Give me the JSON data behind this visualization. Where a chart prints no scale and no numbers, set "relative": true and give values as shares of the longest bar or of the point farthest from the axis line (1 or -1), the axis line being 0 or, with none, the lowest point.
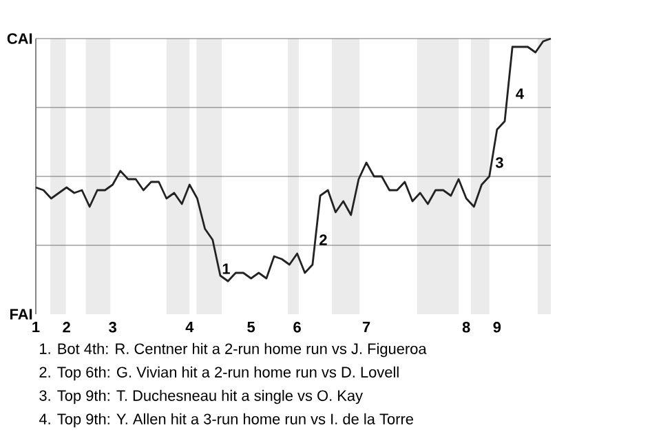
{
  "chart_data": {
    "type": "line",
    "relative": true,
    "categories": [
      "1",
      null,
      null,
      null,
      "2",
      null,
      null,
      null,
      null,
      null,
      "3",
      null,
      null,
      null,
      null,
      null,
      null,
      null,
      null,
      null,
      "4",
      null,
      null,
      null,
      null,
      null,
      null,
      null,
      "5",
      null,
      null,
      null,
      null,
      null,
      "6",
      null,
      null,
      null,
      null,
      null,
      null,
      null,
      null,
      "7",
      null,
      null,
      null,
      null,
      null,
      null,
      null,
      null,
      null,
      null,
      null,
      null,
      "8",
      null,
      null,
      null,
      "9",
      null,
      null,
      null,
      null,
      null,
      null,
      null
    ],
    "values": [
      0.46,
      0.45,
      0.42,
      0.44,
      0.46,
      0.44,
      0.45,
      0.39,
      0.45,
      0.45,
      0.47,
      0.52,
      0.49,
      0.49,
      0.45,
      0.48,
      0.48,
      0.42,
      0.44,
      0.4,
      0.47,
      0.42,
      0.31,
      0.27,
      0.14,
      0.12,
      0.15,
      0.15,
      0.13,
      0.15,
      0.13,
      0.21,
      0.2,
      0.18,
      0.22,
      0.15,
      0.18,
      0.43,
      0.45,
      0.37,
      0.41,
      0.36,
      0.49,
      0.55,
      0.5,
      0.5,
      0.45,
      0.45,
      0.48,
      0.41,
      0.44,
      0.4,
      0.45,
      0.45,
      0.43,
      0.49,
      0.42,
      0.39,
      0.47,
      0.5,
      0.67,
      0.7,
      0.97,
      0.97,
      0.97,
      0.95,
      0.99,
      1.0
    ],
    "color": "#222222",
    "marker": "none",
    "grid": "y",
    "annotations": [
      "CAI",
      "FAI",
      "1",
      {
        "text": "2",
        "y": 0.27
      },
      {
        "text": "3",
        "y": 0.55
      },
      "4",
      "1. Bot 4th: R. Centner hit a 2-run home run vs J. Figueroa",
      "2. Top 6th: G. Vivian hit a 2-run home run vs D. Lovell",
      "3. Top 9th: T. Duchesneau hit a single vs O. Kay",
      "4. Top 9th: Y. Allen hit a 3-run home run vs I. de la Torre"
    ]
  }
}
